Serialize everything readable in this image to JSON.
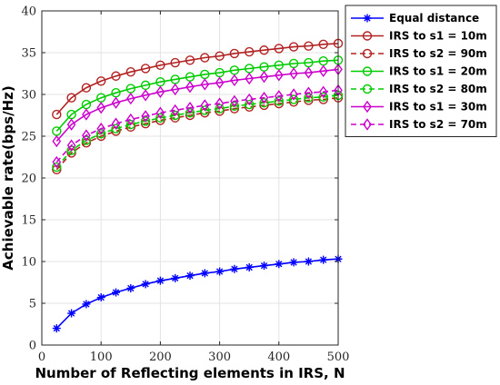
{
  "chart_data": {
    "type": "line",
    "title": "",
    "xlabel": "Number of Reflecting elements in IRS, N",
    "ylabel": "Achievable rate(bps/Hz)",
    "xlim": [
      0,
      500
    ],
    "ylim": [
      0,
      40
    ],
    "xticks": [
      0,
      100,
      200,
      300,
      400,
      500
    ],
    "yticks": [
      0,
      5,
      10,
      15,
      20,
      25,
      30,
      35,
      40
    ],
    "grid": true,
    "legend_position": "top-right, outside plot",
    "x": [
      25,
      50,
      75,
      100,
      125,
      150,
      175,
      200,
      225,
      250,
      275,
      300,
      325,
      350,
      375,
      400,
      425,
      450,
      475,
      500
    ],
    "series": [
      {
        "name": "Equal distance",
        "color": "#0000ff",
        "marker": "asterisk",
        "dash": "solid",
        "values": [
          2.0,
          3.8,
          4.9,
          5.7,
          6.3,
          6.8,
          7.3,
          7.7,
          8.0,
          8.3,
          8.6,
          8.8,
          9.1,
          9.3,
          9.5,
          9.7,
          9.9,
          10.0,
          10.2,
          10.3
        ]
      },
      {
        "name": "IRS to s1 = 10m",
        "color": "#b22222",
        "marker": "circle",
        "dash": "solid",
        "values": [
          27.6,
          29.6,
          30.8,
          31.6,
          32.2,
          32.7,
          33.1,
          33.5,
          33.8,
          34.1,
          34.4,
          34.6,
          34.9,
          35.1,
          35.3,
          35.5,
          35.7,
          35.8,
          36.0,
          36.1
        ]
      },
      {
        "name": "IRS to s2 = 90m",
        "color": "#b22222",
        "marker": "circle",
        "dash": "dashed",
        "values": [
          21.0,
          23.0,
          24.2,
          25.0,
          25.6,
          26.1,
          26.5,
          26.9,
          27.2,
          27.5,
          27.8,
          28.0,
          28.3,
          28.5,
          28.7,
          28.9,
          29.1,
          29.3,
          29.4,
          29.6
        ]
      },
      {
        "name": "IRS to s1 = 20m",
        "color": "#00cc00",
        "marker": "circle",
        "dash": "solid",
        "values": [
          25.6,
          27.6,
          28.8,
          29.6,
          30.2,
          30.7,
          31.1,
          31.5,
          31.8,
          32.1,
          32.4,
          32.6,
          32.9,
          33.1,
          33.3,
          33.5,
          33.7,
          33.8,
          34.0,
          34.1
        ]
      },
      {
        "name": "IRS to s2 = 80m",
        "color": "#00cc00",
        "marker": "circle",
        "dash": "dashed",
        "values": [
          21.3,
          23.3,
          24.5,
          25.3,
          25.9,
          26.4,
          26.8,
          27.2,
          27.5,
          27.8,
          28.1,
          28.3,
          28.6,
          28.8,
          29.0,
          29.2,
          29.4,
          29.6,
          29.7,
          29.9
        ]
      },
      {
        "name": "IRS to s1 = 30m",
        "color": "#cc00cc",
        "marker": "diamond",
        "dash": "solid",
        "values": [
          24.4,
          26.4,
          27.6,
          28.4,
          29.0,
          29.5,
          29.9,
          30.3,
          30.6,
          30.9,
          31.2,
          31.4,
          31.7,
          31.9,
          32.1,
          32.3,
          32.5,
          32.6,
          32.8,
          33.0
        ]
      },
      {
        "name": "IRS to s2 = 70m",
        "color": "#cc00cc",
        "marker": "diamond",
        "dash": "dashed",
        "values": [
          21.9,
          23.9,
          25.1,
          25.9,
          26.5,
          27.0,
          27.4,
          27.8,
          28.1,
          28.4,
          28.7,
          28.9,
          29.2,
          29.4,
          29.6,
          29.8,
          30.0,
          30.2,
          30.3,
          30.5
        ]
      }
    ]
  }
}
